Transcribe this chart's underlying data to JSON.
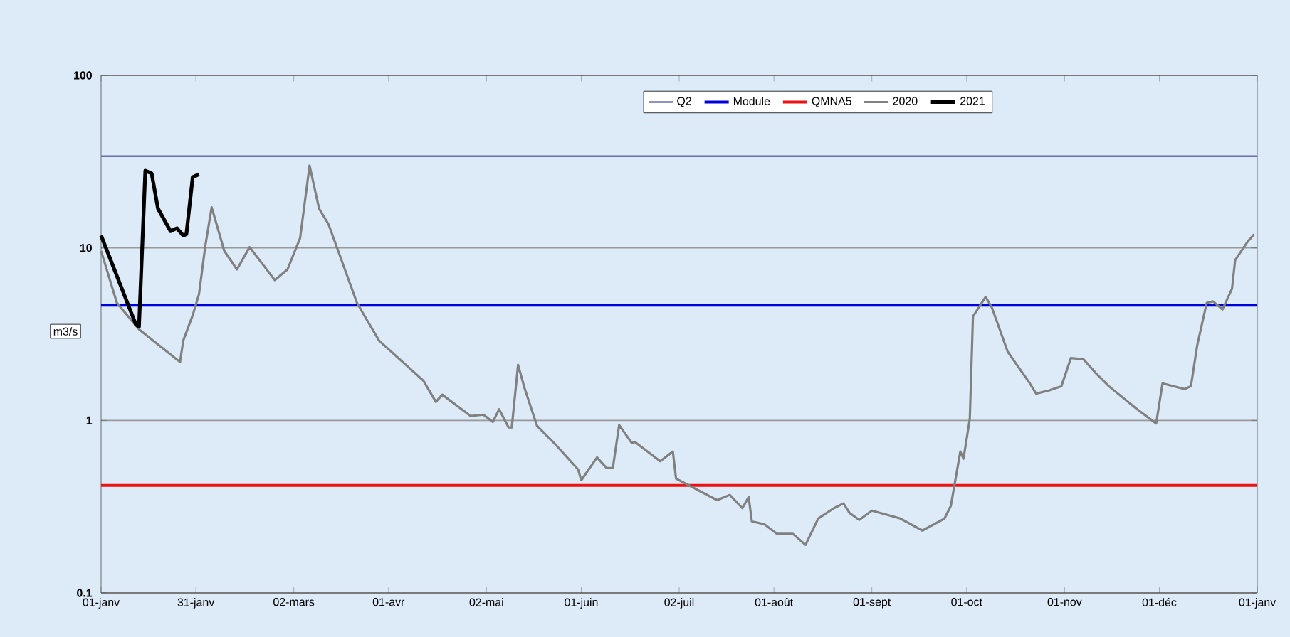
{
  "chart_data": {
    "type": "line",
    "ylabel": "m3/s",
    "log": "y",
    "grid": "y",
    "legend": "top",
    "xlim": [
      "2020-01-01",
      "2021-01-01"
    ],
    "ylim": [
      0.1,
      100
    ],
    "yticks": [
      0.1,
      1,
      10,
      100
    ],
    "xticks": [
      {
        "value": "2020-01-01",
        "label": "01-janv"
      },
      {
        "value": "2020-01-31",
        "label": "31-janv"
      },
      {
        "value": "2020-03-02",
        "label": "02-mars"
      },
      {
        "value": "2020-04-01",
        "label": "01-avr"
      },
      {
        "value": "2020-05-02",
        "label": "02-mai"
      },
      {
        "value": "2020-06-01",
        "label": "01-juin"
      },
      {
        "value": "2020-07-02",
        "label": "02-juil"
      },
      {
        "value": "2020-08-01",
        "label": "01-août"
      },
      {
        "value": "2020-09-01",
        "label": "01-sept"
      },
      {
        "value": "2020-10-01",
        "label": "01-oct"
      },
      {
        "value": "2020-11-01",
        "label": "01-nov"
      },
      {
        "value": "2020-12-01",
        "label": "01-déc"
      },
      {
        "value": "2021-01-01",
        "label": "01-janv"
      }
    ],
    "series": [
      {
        "name": "Q2",
        "color": "#6a6fa8",
        "x": [
          "2020-01-01",
          "2021-01-01"
        ],
        "values": [
          34,
          34
        ]
      },
      {
        "name": "Module",
        "color": "#0000dd",
        "x": [
          "2020-01-01",
          "2021-01-01"
        ],
        "values": [
          4.65,
          4.65
        ]
      },
      {
        "name": "QMNA5",
        "color": "#ee1111",
        "x": [
          "2020-01-01",
          "2021-01-01"
        ],
        "values": [
          0.42,
          0.42
        ]
      },
      {
        "name": "2020",
        "color": "#808080",
        "x": [
          "2020-01-01",
          "2020-01-06",
          "2020-01-13",
          "2020-01-26",
          "2020-01-27",
          "2020-01-30",
          "2020-02-01",
          "2020-02-03",
          "2020-02-05",
          "2020-02-09",
          "2020-02-13",
          "2020-02-15",
          "2020-02-17",
          "2020-02-25",
          "2020-02-29",
          "2020-03-04",
          "2020-03-07",
          "2020-03-10",
          "2020-03-13",
          "2020-03-22",
          "2020-03-29",
          "2020-04-12",
          "2020-04-16",
          "2020-04-18",
          "2020-04-27",
          "2020-05-01",
          "2020-05-04",
          "2020-05-06",
          "2020-05-09",
          "2020-05-10",
          "2020-05-12",
          "2020-05-14",
          "2020-05-18",
          "2020-05-24",
          "2020-05-31",
          "2020-06-01",
          "2020-06-06",
          "2020-06-09",
          "2020-06-11",
          "2020-06-13",
          "2020-06-17",
          "2020-06-18",
          "2020-06-26",
          "2020-06-30",
          "2020-07-01",
          "2020-07-14",
          "2020-07-18",
          "2020-07-22",
          "2020-07-24",
          "2020-07-25",
          "2020-07-29",
          "2020-08-02",
          "2020-08-07",
          "2020-08-11",
          "2020-08-15",
          "2020-08-20",
          "2020-08-23",
          "2020-08-25",
          "2020-08-28",
          "2020-09-01",
          "2020-09-10",
          "2020-09-17",
          "2020-09-24",
          "2020-09-26",
          "2020-09-29",
          "2020-09-30",
          "2020-10-02",
          "2020-10-03",
          "2020-10-07",
          "2020-10-09",
          "2020-10-14",
          "2020-10-21",
          "2020-10-23",
          "2020-10-27",
          "2020-10-31",
          "2020-11-03",
          "2020-11-07",
          "2020-11-11",
          "2020-11-15",
          "2020-11-24",
          "2020-11-30",
          "2020-12-02",
          "2020-12-09",
          "2020-12-11",
          "2020-12-13",
          "2020-12-16",
          "2020-12-18",
          "2020-12-21",
          "2020-12-24",
          "2020-12-25",
          "2020-12-29",
          "2020-12-31"
        ],
        "values": [
          9.6,
          4.8,
          3.37,
          2.18,
          2.9,
          4.07,
          5.4,
          10.3,
          17.2,
          9.6,
          7.5,
          8.7,
          10.1,
          6.5,
          7.5,
          11.4,
          30,
          16.9,
          13.7,
          4.8,
          2.9,
          1.7,
          1.28,
          1.41,
          1.06,
          1.08,
          0.98,
          1.16,
          0.91,
          0.91,
          2.1,
          1.55,
          0.93,
          0.72,
          0.52,
          0.45,
          0.61,
          0.53,
          0.53,
          0.94,
          0.74,
          0.75,
          0.58,
          0.66,
          0.46,
          0.345,
          0.37,
          0.31,
          0.36,
          0.26,
          0.25,
          0.22,
          0.22,
          0.19,
          0.27,
          0.31,
          0.33,
          0.29,
          0.265,
          0.3,
          0.27,
          0.23,
          0.27,
          0.32,
          0.66,
          0.6,
          1.02,
          4.0,
          5.2,
          4.5,
          2.5,
          1.64,
          1.43,
          1.49,
          1.58,
          2.3,
          2.26,
          1.87,
          1.58,
          1.16,
          0.96,
          1.64,
          1.52,
          1.58,
          2.73,
          4.8,
          4.9,
          4.4,
          5.8,
          8.5,
          10.9,
          12
        ]
      },
      {
        "name": "2021",
        "color": "#000000",
        "x": [
          "2020-01-01",
          "2020-01-12",
          "2020-01-13",
          "2020-01-15",
          "2020-01-17",
          "2020-01-19",
          "2020-01-23",
          "2020-01-25",
          "2020-01-27",
          "2020-01-28",
          "2020-01-30",
          "2020-02-01"
        ],
        "values": [
          11.8,
          3.6,
          3.5,
          28,
          27,
          16.9,
          12.5,
          13,
          11.8,
          12,
          25.7,
          26.7
        ]
      }
    ]
  }
}
